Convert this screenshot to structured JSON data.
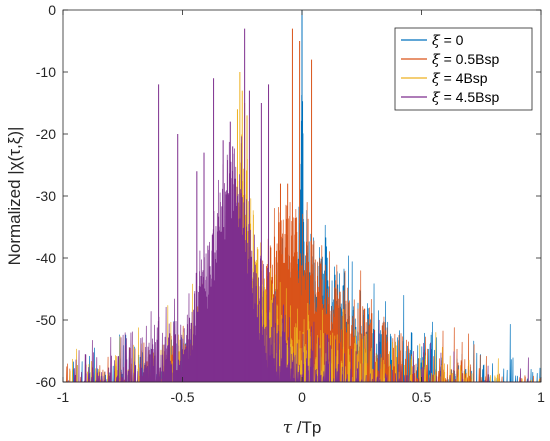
{
  "chart_data": {
    "type": "line",
    "xlabel_sym": "τ",
    "xlabel_rest": " /Tp",
    "ylabel": "Normalized |χ(τ,ξ)|",
    "xlim": [
      -1,
      1
    ],
    "ylim": [
      -60,
      0
    ],
    "xticks": [
      -1,
      -0.5,
      0,
      0.5,
      1
    ],
    "xtick_labels": [
      "-1",
      "-0.5",
      "0",
      "0.5",
      "1"
    ],
    "yticks": [
      -60,
      -50,
      -40,
      -30,
      -20,
      -10,
      0
    ],
    "ytick_labels": [
      "-60",
      "-50",
      "-40",
      "-30",
      "-20",
      "-10",
      "0"
    ],
    "grid": false,
    "legend_placement": "top-right",
    "series": [
      {
        "name": "ξ = 0",
        "sym": "ξ",
        "rest": " = 0",
        "color": "#0072BD",
        "envelope": [
          [
            -1,
            -56
          ],
          [
            -0.8,
            -54
          ],
          [
            -0.6,
            -52
          ],
          [
            -0.4,
            -50
          ],
          [
            -0.2,
            -45
          ],
          [
            -0.1,
            -40
          ],
          [
            -0.05,
            -37
          ],
          [
            -0.01,
            -30
          ],
          [
            0,
            0
          ],
          [
            0.01,
            -33
          ],
          [
            0.05,
            -35
          ],
          [
            0.1,
            -37
          ],
          [
            0.2,
            -41
          ],
          [
            0.3,
            -46
          ],
          [
            0.4,
            -49
          ],
          [
            0.5,
            -51
          ],
          [
            0.6,
            -52
          ],
          [
            0.7,
            -53
          ],
          [
            0.8,
            -54
          ],
          [
            0.9,
            -55
          ],
          [
            1,
            -57
          ]
        ],
        "peaks": [
          [
            0,
            0
          ]
        ]
      },
      {
        "name": "ξ = 0.5Bsp",
        "sym": "ξ",
        "rest": " = 0.5Bsp",
        "color": "#D95319",
        "envelope": [
          [
            -1,
            -57
          ],
          [
            -0.8,
            -55
          ],
          [
            -0.6,
            -52
          ],
          [
            -0.4,
            -49
          ],
          [
            -0.3,
            -45
          ],
          [
            -0.2,
            -40
          ],
          [
            -0.15,
            -36
          ],
          [
            -0.1,
            -30
          ],
          [
            -0.05,
            -28
          ],
          [
            -0.02,
            -29
          ],
          [
            0,
            -31
          ],
          [
            0.05,
            -34
          ],
          [
            0.1,
            -38
          ],
          [
            0.2,
            -42
          ],
          [
            0.3,
            -46
          ],
          [
            0.4,
            -50
          ],
          [
            0.5,
            -52
          ],
          [
            0.6,
            -53
          ],
          [
            0.7,
            -54
          ],
          [
            0.8,
            -55
          ],
          [
            0.9,
            -56
          ],
          [
            1,
            -58
          ]
        ],
        "peaks": [
          [
            -0.04,
            -3
          ],
          [
            -0.01,
            -5
          ],
          [
            0.04,
            -8
          ],
          [
            -0.09,
            -28
          ],
          [
            -0.06,
            -28
          ]
        ]
      },
      {
        "name": "ξ = 4Bsp",
        "sym": "ξ",
        "rest": " = 4Bsp",
        "color": "#EDB120",
        "envelope": [
          [
            -1,
            -55
          ],
          [
            -0.8,
            -54
          ],
          [
            -0.6,
            -52
          ],
          [
            -0.5,
            -49
          ],
          [
            -0.4,
            -44
          ],
          [
            -0.35,
            -38
          ],
          [
            -0.3,
            -32
          ],
          [
            -0.27,
            -22
          ],
          [
            -0.25,
            -18
          ],
          [
            -0.23,
            -22
          ],
          [
            -0.2,
            -33
          ],
          [
            -0.15,
            -38
          ],
          [
            -0.1,
            -42
          ],
          [
            0,
            -46
          ],
          [
            0.1,
            -48
          ],
          [
            0.2,
            -50
          ],
          [
            0.3,
            -52
          ],
          [
            0.4,
            -53
          ],
          [
            0.5,
            -54
          ],
          [
            0.6,
            -55
          ],
          [
            0.7,
            -56
          ],
          [
            0.8,
            -57
          ],
          [
            1,
            -58
          ]
        ],
        "peaks": [
          [
            -0.27,
            -16
          ],
          [
            -0.26,
            -10
          ],
          [
            -0.25,
            -13
          ],
          [
            -0.24,
            -15
          ],
          [
            -0.23,
            -17
          ]
        ]
      },
      {
        "name": "ξ = 4.5Bsp",
        "sym": "ξ",
        "rest": " = 4.5Bsp",
        "color": "#7E2F8E",
        "envelope": [
          [
            -1,
            -55
          ],
          [
            -0.9,
            -53
          ],
          [
            -0.8,
            -52
          ],
          [
            -0.7,
            -50
          ],
          [
            -0.6,
            -48
          ],
          [
            -0.5,
            -45
          ],
          [
            -0.45,
            -40
          ],
          [
            -0.4,
            -34
          ],
          [
            -0.35,
            -26
          ],
          [
            -0.32,
            -22
          ],
          [
            -0.3,
            -20
          ],
          [
            -0.28,
            -19
          ],
          [
            -0.26,
            -21
          ],
          [
            -0.24,
            -25
          ],
          [
            -0.22,
            -30
          ],
          [
            -0.2,
            -36
          ],
          [
            -0.15,
            -42
          ],
          [
            -0.1,
            -46
          ],
          [
            0,
            -49
          ],
          [
            0.1,
            -51
          ],
          [
            0.2,
            -53
          ],
          [
            0.3,
            -54
          ],
          [
            0.4,
            -55
          ],
          [
            0.5,
            -56
          ],
          [
            0.6,
            -56
          ],
          [
            0.7,
            -57
          ],
          [
            0.8,
            -57
          ],
          [
            1,
            -58
          ]
        ],
        "peaks": [
          [
            -0.37,
            -11
          ],
          [
            -0.33,
            -21
          ],
          [
            -0.3,
            -18
          ],
          [
            -0.29,
            -22
          ],
          [
            -0.24,
            -3
          ],
          [
            -0.22,
            -13
          ],
          [
            -0.17,
            -15
          ],
          [
            -0.14,
            -12
          ],
          [
            -0.44,
            -26
          ],
          [
            -0.41,
            -23
          ],
          [
            -0.52,
            -20
          ],
          [
            -0.6,
            -12
          ]
        ]
      }
    ]
  }
}
